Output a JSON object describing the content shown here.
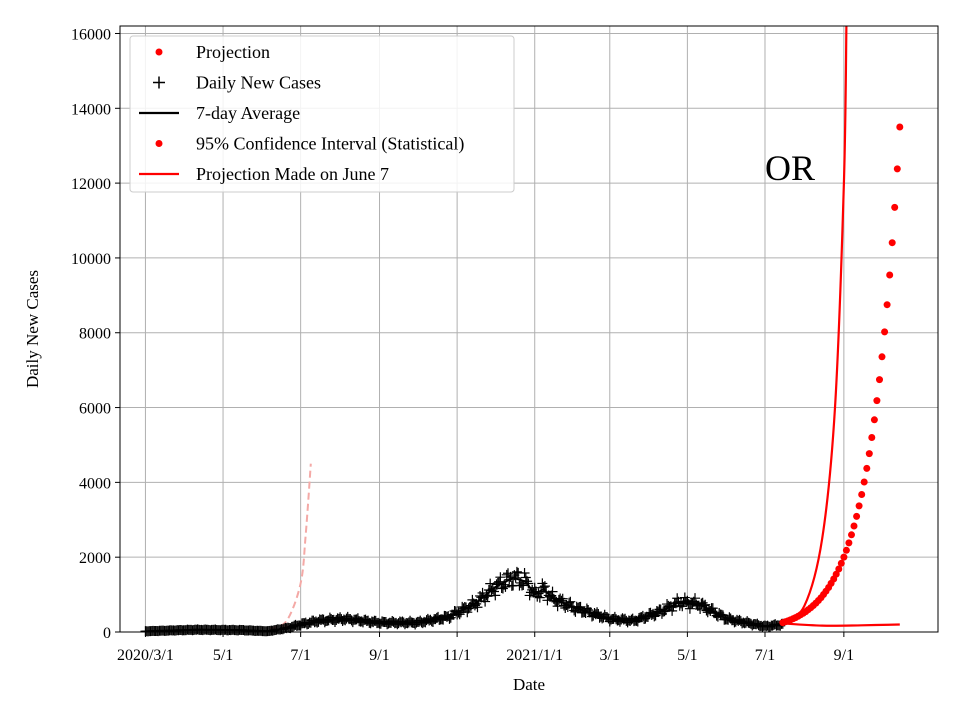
{
  "chart_data": {
    "type": "line",
    "xlabel": "Date",
    "ylabel": "Daily New Cases",
    "xlim": [
      "2020-02-10",
      "2021-11-14"
    ],
    "ylim": [
      0,
      16200
    ],
    "x_ticks": [
      {
        "date": "2020-03-01",
        "label": "2020/3/1"
      },
      {
        "date": "2020-05-01",
        "label": "5/1"
      },
      {
        "date": "2020-07-01",
        "label": "7/1"
      },
      {
        "date": "2020-09-01",
        "label": "9/1"
      },
      {
        "date": "2020-11-01",
        "label": "11/1"
      },
      {
        "date": "2021-01-01",
        "label": "2021/1/1"
      },
      {
        "date": "2021-03-01",
        "label": "3/1"
      },
      {
        "date": "2021-05-01",
        "label": "5/1"
      },
      {
        "date": "2021-07-01",
        "label": "7/1"
      },
      {
        "date": "2021-09-01",
        "label": "9/1"
      }
    ],
    "y_ticks": [
      0,
      2000,
      4000,
      6000,
      8000,
      10000,
      12000,
      14000,
      16000
    ],
    "grid": true,
    "legend_position": "top-left",
    "legend": [
      {
        "label": "Projection",
        "marker": "dot",
        "color": "#ff0000"
      },
      {
        "label": "Daily New Cases",
        "marker": "plus",
        "color": "#000000"
      },
      {
        "label": "7-day Average",
        "marker": "line",
        "color": "#000000"
      },
      {
        "label": "95% Confidence Interval (Statistical)",
        "marker": "dot",
        "color": "#ff0000"
      },
      {
        "label": "Projection Made on June 7",
        "marker": "line",
        "color": "#ff0000"
      }
    ],
    "annotation": {
      "text": "OR",
      "date": "2021-07-01",
      "y": 12400
    },
    "daily_cases_anchors": [
      [
        "2020-03-01",
        20
      ],
      [
        "2020-04-10",
        60
      ],
      [
        "2020-05-15",
        50
      ],
      [
        "2020-06-05",
        20
      ],
      [
        "2020-06-20",
        100
      ],
      [
        "2020-07-01",
        200
      ],
      [
        "2020-07-15",
        300
      ],
      [
        "2020-08-05",
        350
      ],
      [
        "2020-09-01",
        250
      ],
      [
        "2020-10-01",
        250
      ],
      [
        "2020-10-25",
        400
      ],
      [
        "2020-11-15",
        750
      ],
      [
        "2020-12-01",
        1200
      ],
      [
        "2020-12-15",
        1450
      ],
      [
        "2020-12-25",
        1350
      ],
      [
        "2021-01-01",
        1000
      ],
      [
        "2021-01-08",
        1150
      ],
      [
        "2021-01-15",
        900
      ],
      [
        "2021-02-01",
        650
      ],
      [
        "2021-03-01",
        350
      ],
      [
        "2021-03-20",
        300
      ],
      [
        "2021-04-10",
        550
      ],
      [
        "2021-04-25",
        800
      ],
      [
        "2021-05-10",
        750
      ],
      [
        "2021-06-01",
        350
      ],
      [
        "2021-07-01",
        150
      ],
      [
        "2021-07-15",
        200
      ]
    ],
    "projection_dots": {
      "start": "2021-07-15",
      "end": "2021-10-15",
      "step_days": 2,
      "y_start": 250,
      "y_end": 13500
    },
    "projection_lines": [
      {
        "name": "upper",
        "points": [
          [
            "2021-07-15",
            250
          ],
          [
            "2021-08-01",
            700
          ],
          [
            "2021-08-15",
            2500
          ],
          [
            "2021-08-25",
            6000
          ],
          [
            "2021-09-01",
            12000
          ],
          [
            "2021-09-03",
            16200
          ]
        ]
      },
      {
        "name": "lower",
        "points": [
          [
            "2021-07-15",
            230
          ],
          [
            "2021-08-15",
            170
          ],
          [
            "2021-09-15",
            180
          ],
          [
            "2021-10-15",
            200
          ]
        ]
      }
    ],
    "earlier_projection": {
      "color": "#f4a9a6",
      "upper": [
        [
          "2020-06-07",
          100
        ],
        [
          "2020-06-20",
          300
        ],
        [
          "2020-07-01",
          1300
        ],
        [
          "2020-07-05",
          2600
        ],
        [
          "2020-07-09",
          4500
        ]
      ],
      "lower": [
        [
          "2020-06-07",
          100
        ],
        [
          "2020-06-20",
          150
        ],
        [
          "2020-07-09",
          250
        ]
      ]
    }
  }
}
